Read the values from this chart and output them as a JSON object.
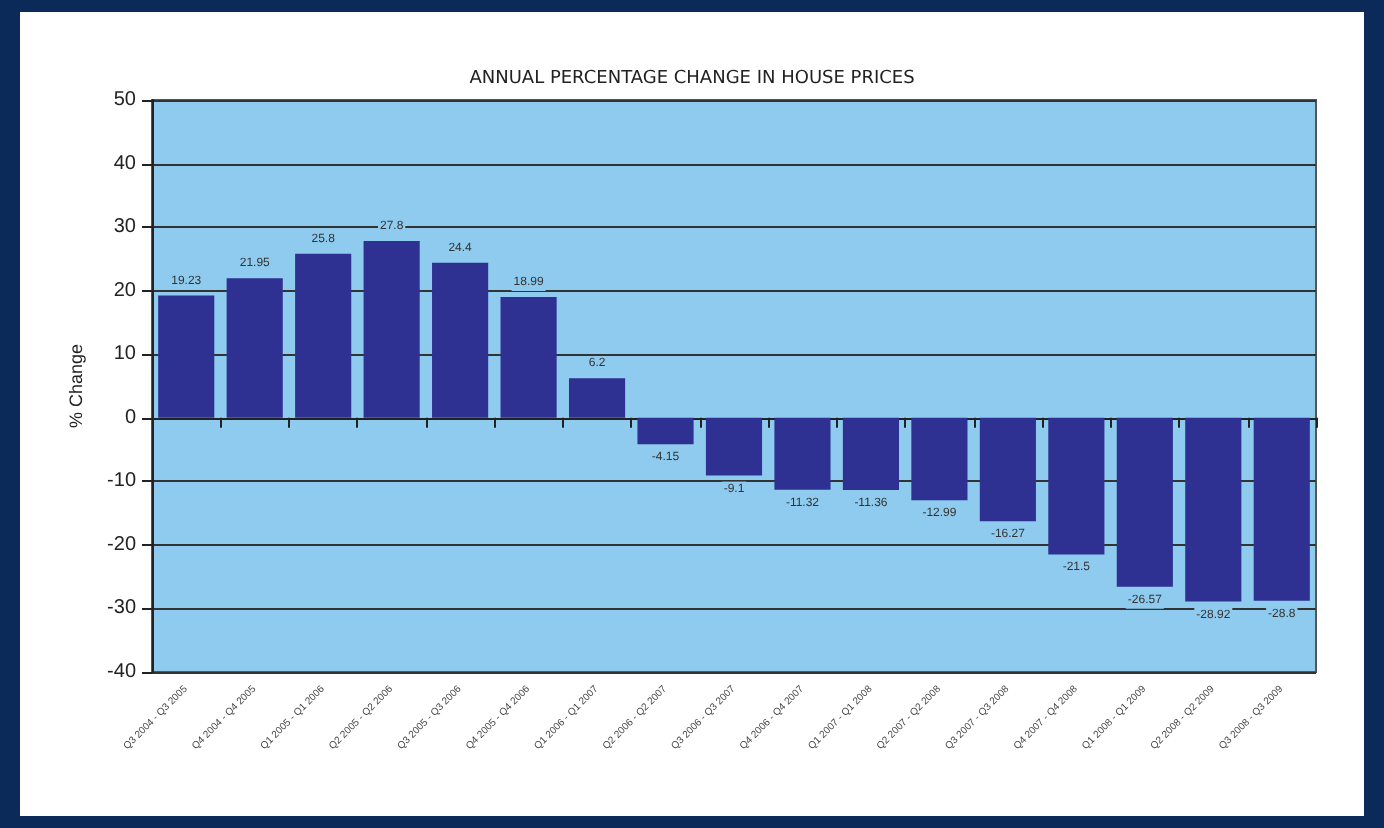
{
  "chart_data": {
    "type": "bar",
    "title": "ANNUAL PERCENTAGE CHANGE IN HOUSE PRICES",
    "ylabel": "% Change",
    "categories": [
      "Q3 2004 - Q3 2005",
      "Q4 2004 - Q4 2005",
      "Q1 2005 - Q1 2006",
      "Q2 2005 - Q2 2006",
      "Q3 2005 - Q3 2006",
      "Q4 2005 - Q4 2006",
      "Q1 2006 - Q1 2007",
      "Q2 2006 - Q2 2007",
      "Q3 2006 - Q3 2007",
      "Q4 2006 - Q4 2007",
      "Q1 2007 - Q1 2008",
      "Q2 2007 - Q2 2008",
      "Q3 2007 - Q3 2008",
      "Q4 2007 - Q4 2008",
      "Q1 2008 - Q1 2009",
      "Q2 2008 - Q2 2009",
      "Q3 2008 - Q3 2009"
    ],
    "values": [
      19.23,
      21.95,
      25.8,
      27.8,
      24.4,
      18.99,
      6.2,
      -4.15,
      -9.1,
      -11.32,
      -11.36,
      -12.99,
      -16.27,
      -21.5,
      -26.57,
      -28.92,
      -28.8
    ],
    "color": "#2e3192",
    "ylim": [
      -40,
      50
    ],
    "yticks": [
      -40,
      -30,
      -20,
      -10,
      0,
      10,
      20,
      30,
      40,
      50
    ],
    "grid": "y",
    "data_labels": true
  }
}
